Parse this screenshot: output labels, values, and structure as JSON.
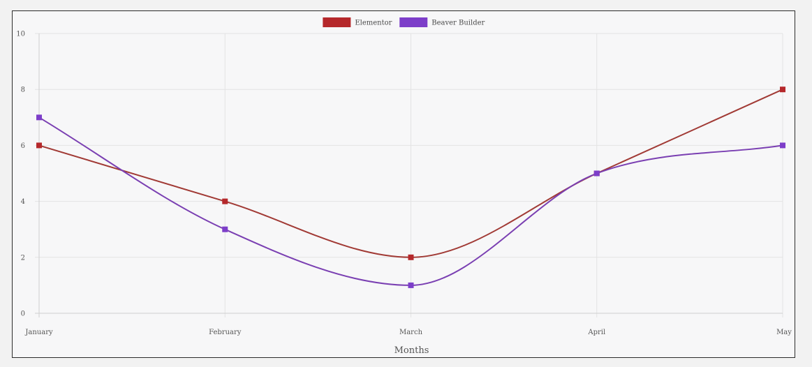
{
  "chart_data": {
    "type": "line",
    "categories": [
      "January",
      "February",
      "March",
      "April",
      "May"
    ],
    "series": [
      {
        "name": "Elementor",
        "values": [
          6,
          4,
          2,
          5,
          8
        ],
        "color": "#b5282b"
      },
      {
        "name": "Beaver Builder",
        "values": [
          7,
          3,
          1,
          5,
          6
        ],
        "color": "#7d3ec9"
      }
    ],
    "xlabel": "Months",
    "ylabel": "",
    "ylim": [
      0,
      10
    ],
    "yticks": [
      0,
      2,
      4,
      6,
      8,
      10
    ],
    "grid": true,
    "legend": "top-center",
    "curve": "smooth",
    "line_colors": {
      "Elementor": "#a13a35",
      "Beaver Builder": "#7a3fb2"
    }
  }
}
